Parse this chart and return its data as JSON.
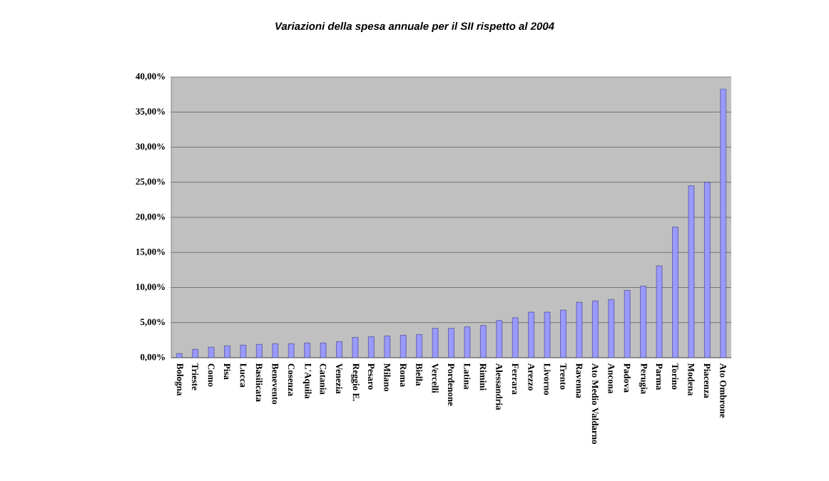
{
  "chart_data": {
    "type": "bar",
    "title": "Variazioni della spesa annuale per il SII rispetto al 2004",
    "categories": [
      "Bologna",
      "Trieste",
      "Como",
      "Pisa",
      "Lucca",
      "Basilicata",
      "Benevento",
      "Cosenza",
      "L'Aquila",
      "Catania",
      "Venezia",
      "Reggio E.",
      "Pesaro",
      "Milano",
      "Roma",
      "Biella",
      "Vercelli",
      "Pordenone",
      "Latina",
      "Rimini",
      "Alessandria",
      "Ferrara",
      "Arezzo",
      "Livorno",
      "Trento",
      "Ravenna",
      "Ato Medio Valdarno",
      "Ancona",
      "Padova",
      "Perugia",
      "Parma",
      "Torino",
      "Modena",
      "Piacenza",
      "Ato Ombrone"
    ],
    "values": [
      0.6,
      1.2,
      1.5,
      1.7,
      1.8,
      1.9,
      2.0,
      2.0,
      2.1,
      2.1,
      2.3,
      2.9,
      3.0,
      3.1,
      3.2,
      3.3,
      4.2,
      4.2,
      4.4,
      4.6,
      5.3,
      5.7,
      6.5,
      6.5,
      6.8,
      7.9,
      8.1,
      8.3,
      9.6,
      10.2,
      13.1,
      18.6,
      24.5,
      25.0,
      38.3
    ],
    "color": "#9999ff",
    "ylim": [
      0,
      40
    ],
    "yticks": [
      {
        "value": 0,
        "label": "0,00%"
      },
      {
        "value": 5,
        "label": "5,00%"
      },
      {
        "value": 10,
        "label": "10,00%"
      },
      {
        "value": 15,
        "label": "15,00%"
      },
      {
        "value": 20,
        "label": "20,00%"
      },
      {
        "value": 25,
        "label": "25,00%"
      },
      {
        "value": 30,
        "label": "30,00%"
      },
      {
        "value": 35,
        "label": "35,00%"
      },
      {
        "value": 40,
        "label": "40,00%"
      }
    ],
    "grid": "y"
  }
}
